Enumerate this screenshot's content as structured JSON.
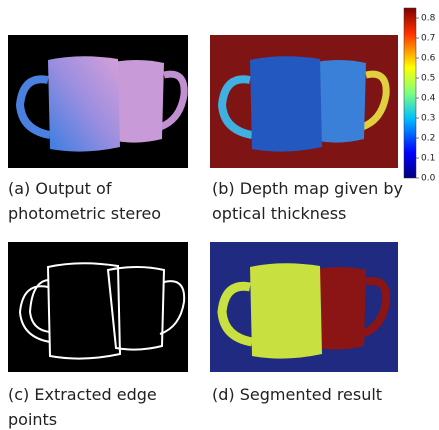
{
  "panels": [
    {
      "caption_lines": [
        "(a) Output of",
        "photometric stereo"
      ]
    },
    {
      "caption_lines": [
        "(b) Depth map given by",
        "optical thickness"
      ]
    },
    {
      "caption_lines": [
        "(c) Extracted edge",
        "points"
      ]
    },
    {
      "caption_lines": [
        "(d) Segmented result"
      ]
    }
  ],
  "colorbar": {
    "lim": [
      0,
      0.85
    ],
    "ticks": [
      {
        "value": 0,
        "label": "0.0"
      },
      0.1,
      0.2,
      0.3,
      0.4,
      0.5,
      0.6,
      0.7,
      0.8
    ]
  }
}
